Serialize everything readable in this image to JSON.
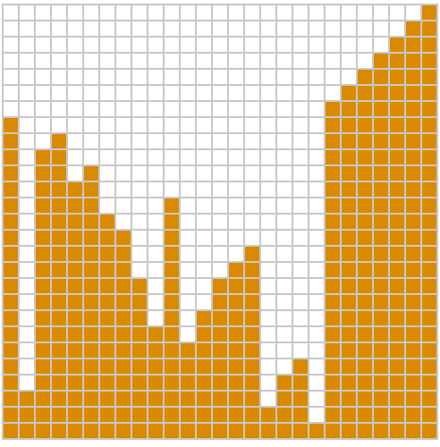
{
  "board": {
    "rows": 27,
    "cols": 27,
    "colors": {
      "filled": "#da8a00",
      "empty": "#ffffff",
      "grid_line": "#c8c8c8"
    },
    "column_heights": [
      20,
      3,
      18,
      19,
      16,
      17,
      14,
      13,
      10,
      7,
      15,
      6,
      8,
      10,
      11,
      12,
      2,
      4,
      5,
      1,
      21,
      22,
      23,
      24,
      25,
      26,
      27
    ]
  }
}
